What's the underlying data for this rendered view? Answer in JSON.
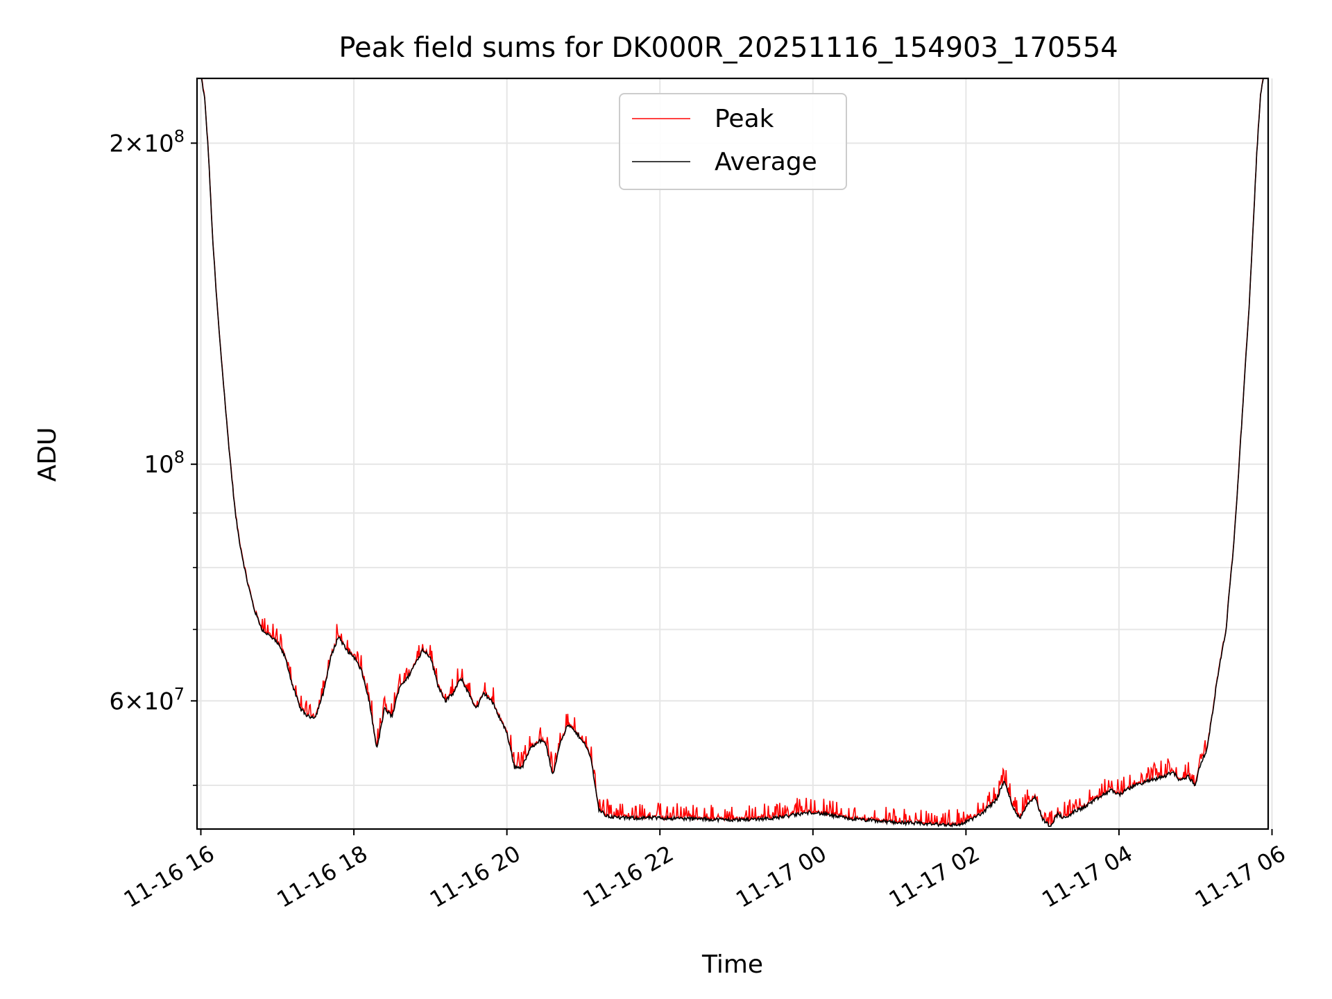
{
  "chart_data": {
    "type": "line",
    "title": "Peak field sums for DK000R_20251116_154903_170554",
    "xlabel": "Time",
    "ylabel": "ADU",
    "yscale": "log",
    "grid": true,
    "legend_position": "upper center",
    "x_unit": "hours since 11-16 16:00",
    "xlim": [
      -0.05,
      13.95
    ],
    "ylim": [
      45500000,
      230000000
    ],
    "x_ticks": [
      {
        "value": 0,
        "label": "11-16 16"
      },
      {
        "value": 2,
        "label": "11-16 18"
      },
      {
        "value": 4,
        "label": "11-16 20"
      },
      {
        "value": 6,
        "label": "11-16 22"
      },
      {
        "value": 8,
        "label": "11-17 00"
      },
      {
        "value": 10,
        "label": "11-17 02"
      },
      {
        "value": 12,
        "label": "11-17 04"
      },
      {
        "value": 14,
        "label": "11-17 06"
      }
    ],
    "y_ticks_major": [
      {
        "value": 200000000,
        "mantissa": "2",
        "exponent": "8"
      },
      {
        "value": 100000000,
        "mantissa": "",
        "exponent": "8"
      },
      {
        "value": 60000000,
        "mantissa": "6",
        "exponent": "7"
      }
    ],
    "y_ticks_minor": [
      50000000,
      70000000,
      80000000,
      90000000
    ],
    "series": [
      {
        "name": "Peak",
        "color": "#ff0000",
        "spiky": true
      },
      {
        "name": "Average",
        "color": "#000000",
        "spiky": false
      }
    ],
    "x": [
      0.0,
      0.05,
      0.1,
      0.15,
      0.2,
      0.25,
      0.3,
      0.35,
      0.4,
      0.45,
      0.5,
      0.6,
      0.7,
      0.8,
      0.9,
      1.0,
      1.1,
      1.2,
      1.3,
      1.4,
      1.5,
      1.6,
      1.7,
      1.8,
      1.9,
      2.0,
      2.1,
      2.2,
      2.3,
      2.4,
      2.5,
      2.6,
      2.7,
      2.8,
      2.9,
      3.0,
      3.1,
      3.2,
      3.3,
      3.4,
      3.5,
      3.6,
      3.7,
      3.8,
      3.9,
      4.0,
      4.1,
      4.2,
      4.3,
      4.4,
      4.5,
      4.6,
      4.7,
      4.8,
      4.9,
      5.0,
      5.1,
      5.2,
      5.3,
      5.5,
      6.0,
      6.5,
      7.0,
      7.5,
      8.0,
      8.2,
      8.5,
      9.0,
      9.5,
      9.9,
      10.0,
      10.2,
      10.4,
      10.5,
      10.6,
      10.7,
      10.8,
      10.9,
      11.0,
      11.1,
      11.2,
      11.3,
      11.4,
      11.5,
      11.6,
      11.7,
      11.8,
      11.9,
      12.0,
      12.2,
      12.4,
      12.6,
      12.7,
      12.8,
      12.9,
      13.0,
      13.05,
      13.1,
      13.15,
      13.2,
      13.3,
      13.4,
      13.45,
      13.5,
      13.55,
      13.6,
      13.7,
      13.75,
      13.8,
      13.85,
      13.9
    ],
    "values": [
      232000000,
      220000000,
      195000000,
      165000000,
      145000000,
      130000000,
      118000000,
      107000000,
      98000000,
      90000000,
      85000000,
      78000000,
      73000000,
      70000000,
      69000000,
      68000000,
      66000000,
      62000000,
      59000000,
      58000000,
      58000000,
      61000000,
      66000000,
      69000000,
      67000000,
      66000000,
      64000000,
      60000000,
      54000000,
      59000000,
      58000000,
      62000000,
      63000000,
      65000000,
      67000000,
      66000000,
      62000000,
      60000000,
      61000000,
      63000000,
      61000000,
      59000000,
      61000000,
      60000000,
      58000000,
      56000000,
      52000000,
      52000000,
      54000000,
      55000000,
      55000000,
      51000000,
      55000000,
      57000000,
      56000000,
      55000000,
      53000000,
      47500000,
      46800000,
      46600000,
      46600000,
      46500000,
      46400000,
      46600000,
      47200000,
      46900000,
      46500000,
      46200000,
      46000000,
      45900000,
      46200000,
      47000000,
      48500000,
      50500000,
      48000000,
      46500000,
      48000000,
      48800000,
      46500000,
      45800000,
      47000000,
      46500000,
      47200000,
      47500000,
      48000000,
      48500000,
      49000000,
      49500000,
      49000000,
      50000000,
      50500000,
      51000000,
      51500000,
      50500000,
      51000000,
      50000000,
      52000000,
      53000000,
      54000000,
      57000000,
      64000000,
      70000000,
      77000000,
      84000000,
      95000000,
      108000000,
      140000000,
      165000000,
      195000000,
      222000000,
      232000000
    ]
  },
  "legend": {
    "peak_label": "Peak",
    "average_label": "Average"
  }
}
